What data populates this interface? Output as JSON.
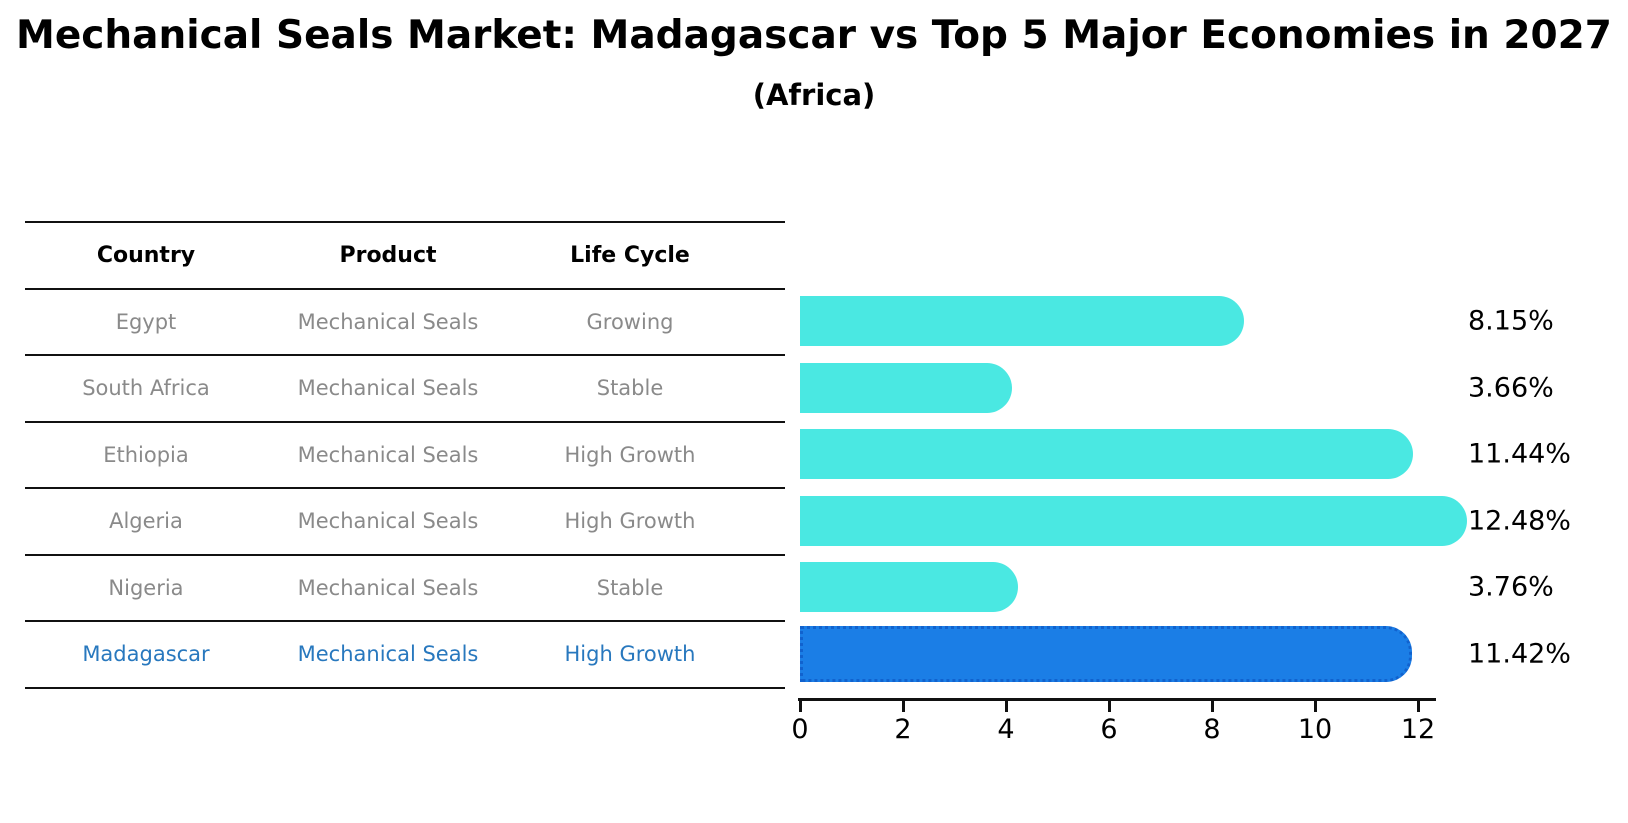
{
  "title": "Mechanical Seals Market: Madagascar vs Top 5 Major Economies in 2027",
  "subtitle": "(Africa)",
  "table": {
    "headers": [
      "Country",
      "Product",
      "Life Cycle"
    ],
    "rows": [
      {
        "country": "Egypt",
        "product": "Mechanical Seals",
        "life_cycle": "Growing",
        "highlight": false
      },
      {
        "country": "South Africa",
        "product": "Mechanical Seals",
        "life_cycle": "Stable",
        "highlight": false
      },
      {
        "country": "Ethiopia",
        "product": "Mechanical Seals",
        "life_cycle": "High Growth",
        "highlight": false
      },
      {
        "country": "Algeria",
        "product": "Mechanical Seals",
        "life_cycle": "High Growth",
        "highlight": false
      },
      {
        "country": "Nigeria",
        "product": "Mechanical Seals",
        "life_cycle": "Stable",
        "highlight": false
      },
      {
        "country": "Madagascar",
        "product": "Mechanical Seals",
        "life_cycle": "High Growth",
        "highlight": true
      }
    ]
  },
  "chart_data": {
    "type": "bar",
    "orientation": "horizontal",
    "categories": [
      "Egypt",
      "South Africa",
      "Ethiopia",
      "Algeria",
      "Nigeria",
      "Madagascar"
    ],
    "values": [
      8.15,
      3.66,
      11.44,
      12.48,
      3.76,
      11.42
    ],
    "value_labels": [
      "8.15%",
      "3.66%",
      "11.44%",
      "12.48%",
      "3.76%",
      "11.42%"
    ],
    "highlight_index": 5,
    "xticks": [
      0,
      2,
      4,
      6,
      8,
      10,
      12
    ],
    "xlim": [
      0,
      12.4
    ],
    "grid": false,
    "legend": false,
    "bar_color": "#4AE8E2",
    "highlight_color": "#1B7EE6",
    "highlight_border_color": "#1162CE",
    "highlight_border_style": "dotted"
  },
  "colors": {
    "bar_cyan": "#4AE8E2",
    "bar_blue": "#1B7EE6",
    "bar_blue_border": "#1162CE",
    "table_text_gray": "#8A8A8A",
    "table_text_blue": "#2878BE",
    "line_black": "#111111",
    "text_black": "#000000"
  }
}
